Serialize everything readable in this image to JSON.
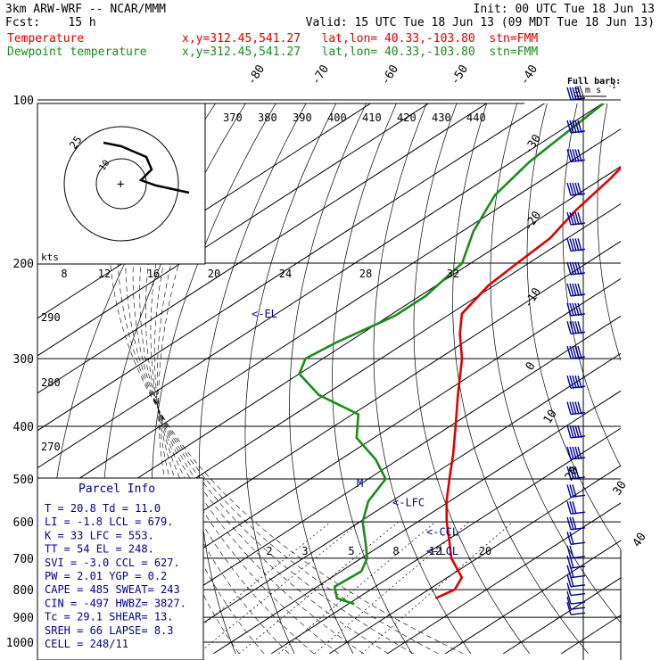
{
  "header": {
    "model_line": "3km ARW-WRF -- NCAR/MMM",
    "init_line": "Init: 00 UTC Tue 18 Jun 13",
    "fcst_line": "Fcst:    15 h",
    "valid_line": "Valid: 15 UTC Tue 18 Jun 13 (09 MDT Tue 18 Jun 13)",
    "temp_label": "Temperature",
    "dewp_label": "Dewpoint temperature",
    "location_line": "x,y=312.45,541.27   lat,lon= 40.33,-103.80  stn=FMM",
    "temp_color": "#e00000",
    "dewp_color": "#1a8c1a",
    "wind_color": "#000090"
  },
  "wind_legend": {
    "title": "Full barb:",
    "subtitle": "5 m s",
    "exp": "-1"
  },
  "hodograph": {
    "ring_label": "25",
    "ring_label2": "10",
    "kts_label": "kts"
  },
  "parcel_info": {
    "title": "Parcel Info",
    "rows": [
      "T   =   20.8  Td =  11.0",
      "LI  =   -1.8  LCL =  679.",
      "K   =     33  LFC =  553.",
      "TT  =     54  EL  =  248.",
      "SVI =   -3.0  CCL =  627.",
      "PW  =   2.01  YGP =   0.2",
      "CAPE =   485  SWEAT=  243",
      "CIN  =  -497  HWBZ= 3827.",
      "Tc  =   29.1  SHEAR=   13.",
      "SREH =    66  LAPSE=  8.3",
      "CELL = 248/11"
    ]
  },
  "chart_data": {
    "type": "line",
    "title": "",
    "xlabel": "",
    "ylabel": "",
    "pressure_ticks": [
      "100",
      "200",
      "300",
      "400",
      "500",
      "600",
      "700",
      "800",
      "900",
      "1000"
    ],
    "temperature_ticks": [
      "-80",
      "-70",
      "-60",
      "-50",
      "-40",
      "-30",
      "-20",
      "-10",
      "0",
      "10",
      "20",
      "30",
      "40"
    ],
    "theta_e_labels": [
      "370",
      "380",
      "390",
      "400",
      "410",
      "420",
      "430",
      "440"
    ],
    "theta_e_labels_lower": [
      "290",
      "280",
      "270"
    ],
    "mixing_ratio_labels": [
      "2",
      "3",
      "5",
      "8",
      "12",
      "20"
    ],
    "hodo_speed_labels": [
      "8",
      "12",
      "16",
      "20",
      "24",
      "28",
      "32"
    ],
    "level_markers": [
      {
        "label": "<-EL",
        "p": 248
      },
      {
        "label": "<-LFC",
        "p": 553
      },
      {
        "label": "<-CCL",
        "p": 627
      },
      {
        "label": "<-LCL",
        "p": 679
      },
      {
        "label": "M",
        "p": 510
      }
    ],
    "series": [
      {
        "name": "Temperature",
        "p": [
          830,
          800,
          760,
          700,
          650,
          600,
          550,
          500,
          450,
          400,
          350,
          300,
          270,
          248,
          220,
          200,
          180,
          160,
          140,
          120,
          100
        ],
        "t": [
          23.5,
          24.5,
          22.5,
          15.5,
          10.5,
          5.0,
          -0.5,
          -6.0,
          -12.0,
          -19.0,
          -27.0,
          -36.0,
          -43.0,
          -48.0,
          -51.0,
          -52.0,
          -53.0,
          -56.0,
          -58.5,
          -62.0,
          -65.0
        ]
      },
      {
        "name": "Dewpoint temperature",
        "p": [
          850,
          830,
          790,
          740,
          700,
          650,
          600,
          550,
          500,
          460,
          420,
          380,
          350,
          320,
          300,
          280,
          250,
          230,
          200,
          175,
          150,
          130,
          100
        ],
        "t": [
          11.0,
          6.5,
          3.0,
          3.5,
          1.0,
          -4.0,
          -9.5,
          -14.0,
          -17.0,
          -24.0,
          -33.0,
          -39.0,
          -51.0,
          -60.0,
          -63.0,
          -62.0,
          -59.0,
          -59.0,
          -61.5,
          -68.0,
          -74.0,
          -77.0,
          -80.0
        ]
      }
    ],
    "wind_barbs": {
      "p": [
        890,
        870,
        850,
        820,
        790,
        760,
        730,
        700,
        660,
        620,
        580,
        540,
        500,
        460,
        420,
        380,
        340,
        300,
        270,
        250,
        230,
        210,
        190,
        170,
        150,
        130,
        115,
        100
      ],
      "speed_ms": [
        5,
        5,
        6,
        7,
        8,
        8,
        10,
        10,
        12,
        15,
        15,
        15,
        20,
        25,
        25,
        30,
        30,
        30,
        35,
        35,
        35,
        40,
        40,
        40,
        35,
        35,
        30,
        25
      ],
      "dir_deg": [
        200,
        210,
        220,
        230,
        240,
        250,
        260,
        260,
        260,
        260,
        250,
        250,
        250,
        250,
        250,
        250,
        250,
        250,
        250,
        250,
        250,
        250,
        250,
        250,
        250,
        250,
        250,
        250
      ]
    }
  }
}
